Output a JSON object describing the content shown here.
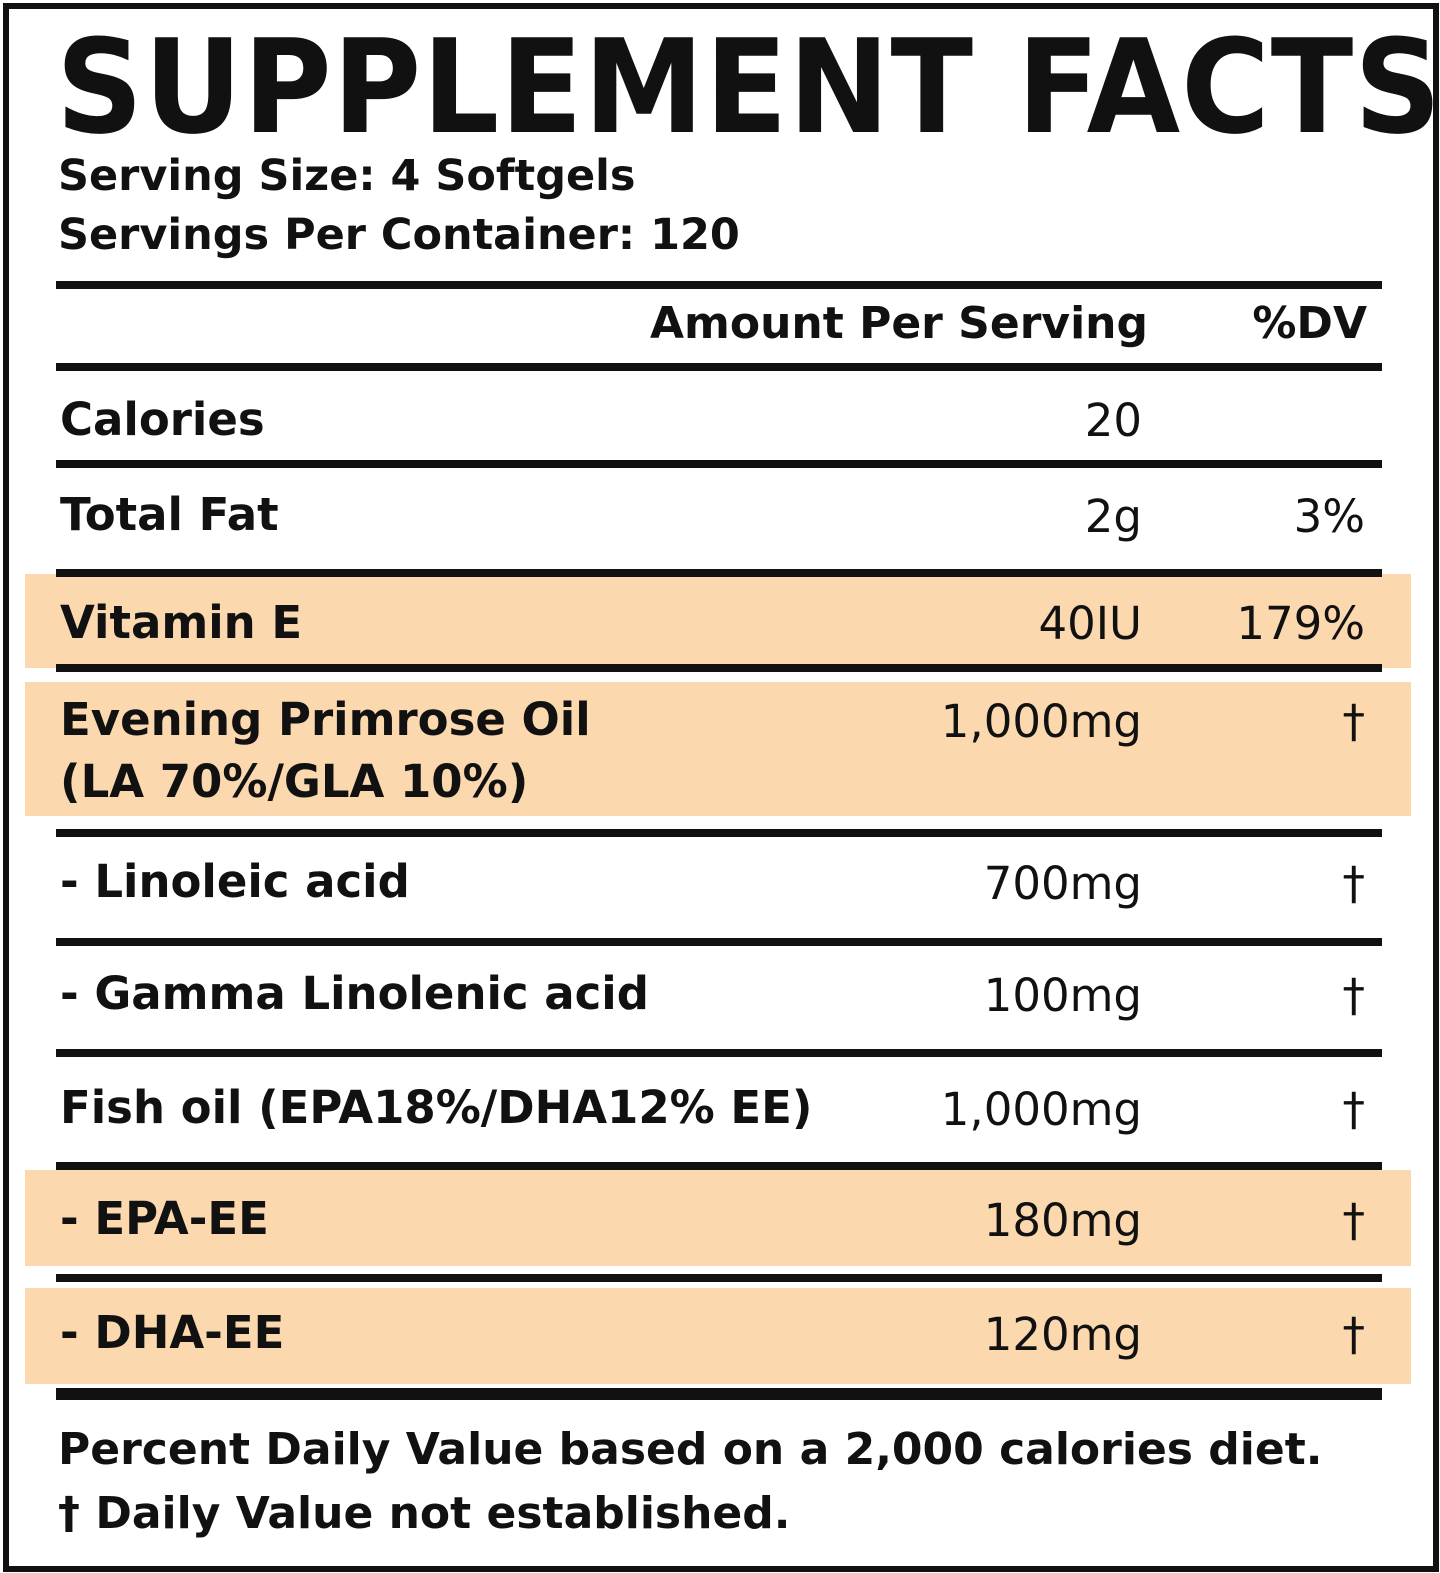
{
  "panel": {
    "title": "SUPPLEMENT FACTS",
    "serving_size": "Serving Size: 4 Softgels",
    "servings_per_container": "Servings Per Container: 120"
  },
  "columns": {
    "amount": "Amount Per Serving",
    "dv": "%DV"
  },
  "highlight_color": "#fbd8ae",
  "rows": [
    {
      "name": "Calories",
      "amount": "20",
      "dv": ""
    },
    {
      "name": "Total Fat",
      "amount": "2g",
      "dv": "3%"
    },
    {
      "name": "Vitamin E",
      "amount": "40IU",
      "dv": "179%",
      "highlighted": true
    },
    {
      "name": "Evening Primrose Oil",
      "name_line2": "(LA 70%/GLA 10%)",
      "amount": "1,000mg",
      "dv": "†",
      "highlighted": true
    },
    {
      "name": "- Linoleic acid",
      "amount": "700mg",
      "dv": "†"
    },
    {
      "name": "- Gamma Linolenic acid",
      "amount": "100mg",
      "dv": "†"
    },
    {
      "name": "Fish oil (EPA18%/DHA12% EE)",
      "amount": "1,000mg",
      "dv": "†"
    },
    {
      "name": "- EPA-EE",
      "amount": "180mg",
      "dv": "†",
      "highlighted": true
    },
    {
      "name": "- DHA-EE",
      "amount": "120mg",
      "dv": "†",
      "highlighted": true
    }
  ],
  "footnotes": [
    "Percent Daily Value based on a 2,000 calories diet.",
    "† Daily Value not established."
  ]
}
